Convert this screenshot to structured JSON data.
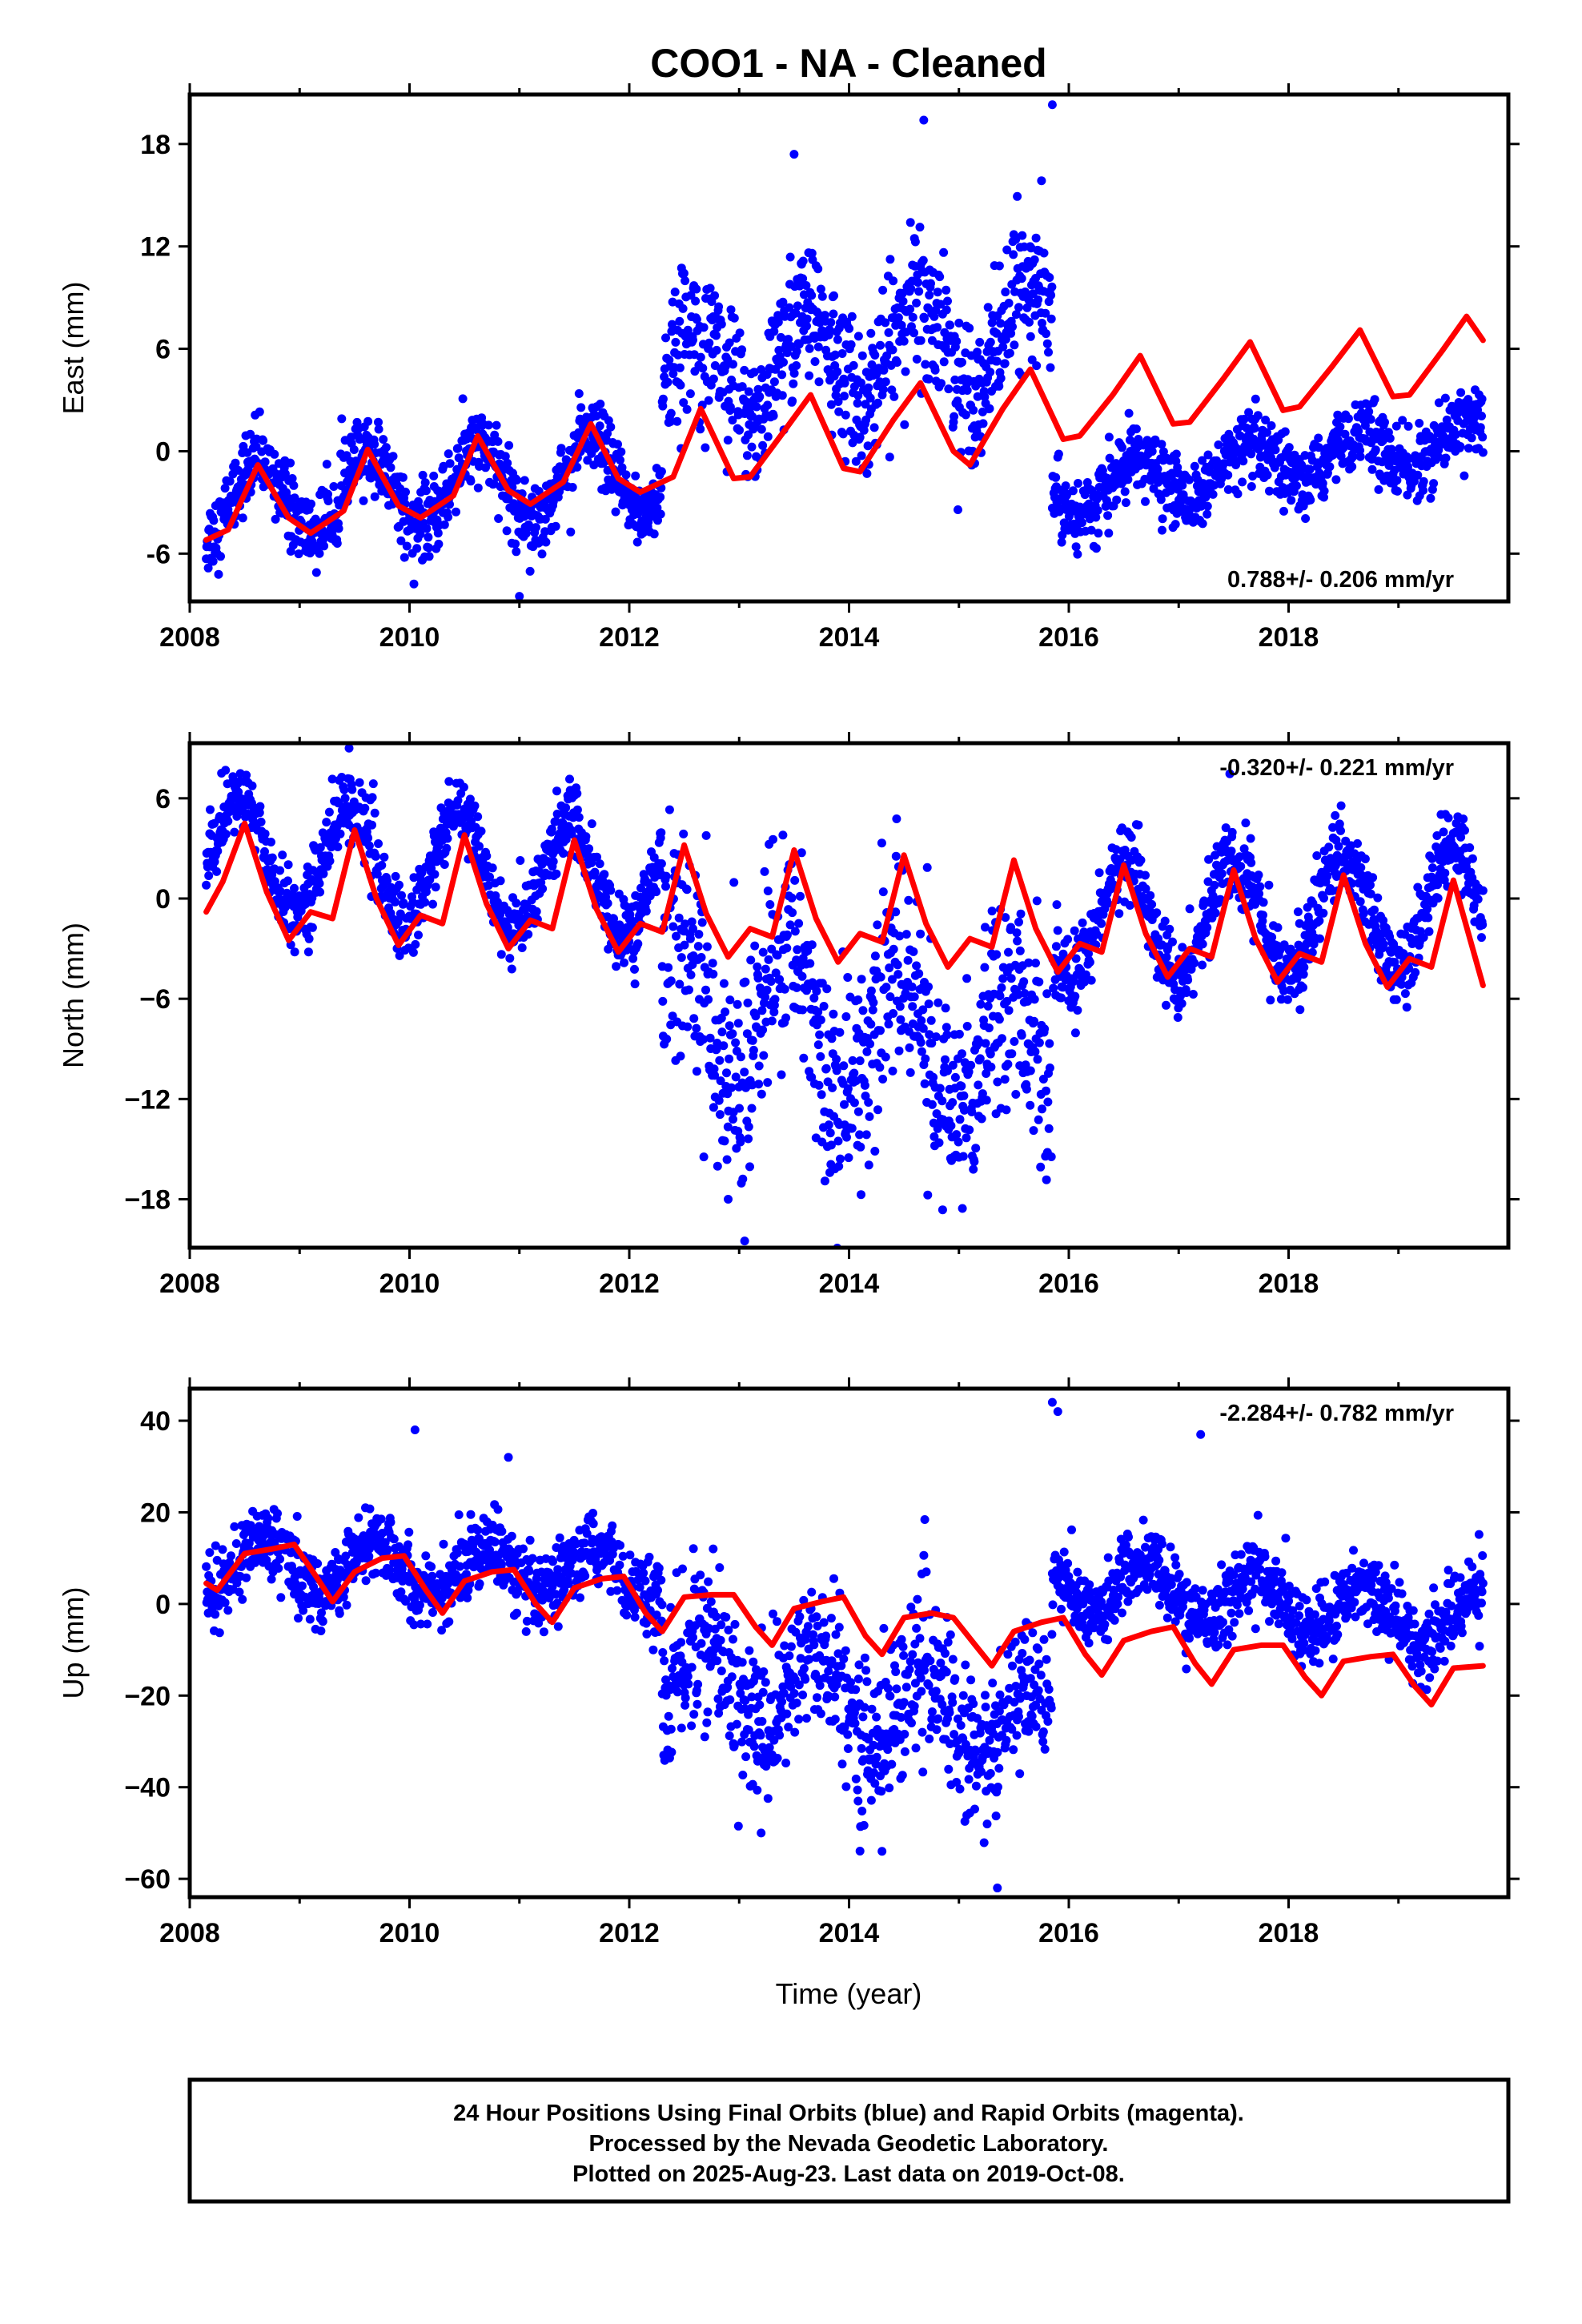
{
  "title": "COO1  - NA - Cleaned",
  "xlabel": "Time (year)",
  "footer": [
    "24 Hour Positions Using Final Orbits (blue) and Rapid Orbits (magenta).",
    "Processed by the Nevada Geodetic Laboratory.",
    "Plotted on 2025-Aug-23. Last data on 2019-Oct-08."
  ],
  "colors": {
    "final_orbits": "#0000ff",
    "model": "#ff0000",
    "frame": "#000000"
  },
  "chart_data": [
    {
      "type": "scatter",
      "component": "east",
      "ylabel": "East (mm)",
      "xlim": [
        2008.0,
        2020.0
      ],
      "ylim": [
        -8.8,
        20.9
      ],
      "x_ticks": [
        2008,
        2010,
        2012,
        2014,
        2016,
        2018
      ],
      "x_tick_labels": [
        "2008",
        "2010",
        "2012",
        "2014",
        "2016",
        "2018"
      ],
      "y_ticks": [
        -6,
        0,
        6,
        12,
        18
      ],
      "y_tick_labels": [
        "-6",
        "0",
        "6",
        "12",
        "18"
      ],
      "rate_label": "0.788+/- 0.206 mm/yr",
      "rate_position": "bottom-right",
      "series": [
        {
          "role": "daily positions (blue)",
          "data_start": 2008.15,
          "data_end": 2019.77,
          "segments": [
            {
              "from": 2008.15,
              "to": 2012.3,
              "trend_start": -3.0,
              "trend_end": -1.2,
              "annual_amplitude": 2.2,
              "annual_peak": 0.62,
              "scatter": 1.1
            },
            {
              "from": 2012.3,
              "to": 2015.85,
              "trend_start": 4.5,
              "trend_end": 7.0,
              "annual_amplitude": 2.8,
              "annual_peak": 0.62,
              "scatter": 2.1
            },
            {
              "from": 2015.85,
              "to": 2019.77,
              "trend_start": -2.5,
              "trend_end": 0.8,
              "annual_amplitude": 1.3,
              "annual_peak": 0.62,
              "scatter": 1.0
            }
          ],
          "outliers": [
            [
              2011.0,
              -8.5
            ],
            [
              2014.68,
              19.4
            ],
            [
              2015.85,
              20.3
            ],
            [
              2013.5,
              17.4
            ]
          ]
        },
        {
          "role": "model fit (red)",
          "points": [
            [
              2008.15,
              -5.2
            ],
            [
              2008.35,
              -4.6
            ],
            [
              2008.62,
              -0.8
            ],
            [
              2008.9,
              -3.9
            ],
            [
              2009.1,
              -4.8
            ],
            [
              2009.4,
              -3.5
            ],
            [
              2009.62,
              0.1
            ],
            [
              2009.9,
              -3.2
            ],
            [
              2010.1,
              -3.9
            ],
            [
              2010.4,
              -2.6
            ],
            [
              2010.62,
              0.9
            ],
            [
              2010.9,
              -2.3
            ],
            [
              2011.1,
              -3.1
            ],
            [
              2011.4,
              -1.8
            ],
            [
              2011.65,
              1.6
            ],
            [
              2011.9,
              -1.6
            ],
            [
              2012.1,
              -2.4
            ],
            [
              2012.4,
              -1.5
            ],
            [
              2012.65,
              2.5
            ],
            [
              2012.95,
              -1.6
            ],
            [
              2013.1,
              -1.5
            ],
            [
              2013.4,
              1.1
            ],
            [
              2013.65,
              3.3
            ],
            [
              2013.95,
              -1.0
            ],
            [
              2014.1,
              -1.2
            ],
            [
              2014.4,
              1.8
            ],
            [
              2014.65,
              4.0
            ],
            [
              2014.95,
              0.0
            ],
            [
              2015.1,
              -0.8
            ],
            [
              2015.4,
              2.5
            ],
            [
              2015.65,
              4.8
            ],
            [
              2015.95,
              0.7
            ],
            [
              2016.1,
              0.9
            ],
            [
              2016.4,
              3.3
            ],
            [
              2016.65,
              5.6
            ],
            [
              2016.95,
              1.6
            ],
            [
              2017.1,
              1.7
            ],
            [
              2017.4,
              4.2
            ],
            [
              2017.65,
              6.4
            ],
            [
              2017.95,
              2.4
            ],
            [
              2018.1,
              2.6
            ],
            [
              2018.4,
              5.0
            ],
            [
              2018.65,
              7.1
            ],
            [
              2018.95,
              3.2
            ],
            [
              2019.1,
              3.3
            ],
            [
              2019.4,
              5.9
            ],
            [
              2019.62,
              7.9
            ],
            [
              2019.77,
              6.5
            ]
          ]
        }
      ]
    },
    {
      "type": "scatter",
      "component": "north",
      "ylabel": "North (mm)",
      "xlim": [
        2008.0,
        2020.0
      ],
      "ylim": [
        -20.9,
        9.3
      ],
      "x_ticks": [
        2008,
        2010,
        2012,
        2014,
        2016,
        2018
      ],
      "x_tick_labels": [
        "2008",
        "2010",
        "2012",
        "2014",
        "2016",
        "2018"
      ],
      "y_ticks": [
        -18,
        -12,
        -6,
        0,
        6
      ],
      "y_tick_labels": [
        "−18",
        "−12",
        "−6",
        "0",
        "6"
      ],
      "rate_label": "-0.320+/- 0.221 mm/yr",
      "rate_position": "top-right",
      "series": [
        {
          "role": "daily positions (blue)",
          "data_start": 2008.15,
          "data_end": 2019.77,
          "segments": [
            {
              "from": 2008.15,
              "to": 2012.3,
              "trend_start": 2.8,
              "trend_end": 0.8,
              "annual_amplitude": 3.3,
              "annual_peak": 0.45,
              "scatter": 1.1
            },
            {
              "from": 2012.3,
              "to": 2015.85,
              "trend_start": -6.0,
              "trend_end": -9.5,
              "annual_amplitude": 4.5,
              "annual_peak": 0.45,
              "scatter": 3.2
            },
            {
              "from": 2015.85,
              "to": 2019.77,
              "trend_start": -1.5,
              "trend_end": -0.5,
              "annual_amplitude": 3.5,
              "annual_peak": 0.5,
              "scatter": 1.2
            }
          ],
          "outliers": [
            [
              2013.05,
              -20.5
            ],
            [
              2012.9,
              -18.0
            ],
            [
              2009.45,
              9.0
            ]
          ]
        },
        {
          "role": "model fit (red)",
          "points": [
            [
              2008.15,
              -0.8
            ],
            [
              2008.3,
              1.0
            ],
            [
              2008.5,
              4.5
            ],
            [
              2008.7,
              0.4
            ],
            [
              2008.9,
              -2.5
            ],
            [
              2009.1,
              -0.8
            ],
            [
              2009.3,
              -1.2
            ],
            [
              2009.5,
              4.1
            ],
            [
              2009.7,
              0.0
            ],
            [
              2009.9,
              -2.8
            ],
            [
              2010.1,
              -1.0
            ],
            [
              2010.3,
              -1.5
            ],
            [
              2010.5,
              3.8
            ],
            [
              2010.7,
              -0.3
            ],
            [
              2010.9,
              -3.0
            ],
            [
              2011.1,
              -1.3
            ],
            [
              2011.3,
              -1.8
            ],
            [
              2011.5,
              3.5
            ],
            [
              2011.7,
              -0.6
            ],
            [
              2011.9,
              -3.2
            ],
            [
              2012.1,
              -1.5
            ],
            [
              2012.3,
              -2.0
            ],
            [
              2012.5,
              3.2
            ],
            [
              2012.7,
              -0.9
            ],
            [
              2012.9,
              -3.5
            ],
            [
              2013.1,
              -1.8
            ],
            [
              2013.3,
              -2.3
            ],
            [
              2013.5,
              2.9
            ],
            [
              2013.7,
              -1.2
            ],
            [
              2013.9,
              -3.8
            ],
            [
              2014.1,
              -2.1
            ],
            [
              2014.3,
              -2.6
            ],
            [
              2014.5,
              2.6
            ],
            [
              2014.7,
              -1.5
            ],
            [
              2014.9,
              -4.1
            ],
            [
              2015.1,
              -2.4
            ],
            [
              2015.3,
              -2.9
            ],
            [
              2015.5,
              2.3
            ],
            [
              2015.7,
              -1.8
            ],
            [
              2015.9,
              -4.4
            ],
            [
              2016.1,
              -2.7
            ],
            [
              2016.3,
              -3.2
            ],
            [
              2016.5,
              2.0
            ],
            [
              2016.7,
              -2.1
            ],
            [
              2016.9,
              -4.7
            ],
            [
              2017.1,
              -3.0
            ],
            [
              2017.3,
              -3.5
            ],
            [
              2017.5,
              1.7
            ],
            [
              2017.7,
              -2.4
            ],
            [
              2017.9,
              -5.0
            ],
            [
              2018.1,
              -3.3
            ],
            [
              2018.3,
              -3.8
            ],
            [
              2018.5,
              1.4
            ],
            [
              2018.7,
              -2.7
            ],
            [
              2018.9,
              -5.3
            ],
            [
              2019.1,
              -3.6
            ],
            [
              2019.3,
              -4.1
            ],
            [
              2019.5,
              1.1
            ],
            [
              2019.77,
              -5.2
            ]
          ]
        }
      ]
    },
    {
      "type": "scatter",
      "component": "up",
      "ylabel": "Up (mm)",
      "xlim": [
        2008.0,
        2020.0
      ],
      "ylim": [
        -64.0,
        47.0
      ],
      "x_ticks": [
        2008,
        2010,
        2012,
        2014,
        2016,
        2018
      ],
      "x_tick_labels": [
        "2008",
        "2010",
        "2012",
        "2014",
        "2016",
        "2018"
      ],
      "y_ticks": [
        -60,
        -40,
        -20,
        0,
        20,
        40
      ],
      "y_tick_labels": [
        "−60",
        "−40",
        "−20",
        "0",
        "20",
        "40"
      ],
      "rate_label": "-2.284+/- 0.782 mm/yr",
      "rate_position": "top-right",
      "series": [
        {
          "role": "daily positions (blue)",
          "data_start": 2008.15,
          "data_end": 2019.77,
          "segments": [
            {
              "from": 2008.15,
              "to": 2012.3,
              "trend_start": 9.0,
              "trend_end": 6.0,
              "annual_amplitude": 5.5,
              "annual_peak": 0.7,
              "scatter": 4.0
            },
            {
              "from": 2012.3,
              "to": 2015.85,
              "trend_start": -15.0,
              "trend_end": -27.0,
              "annual_amplitude": 9.0,
              "annual_peak": 0.7,
              "scatter": 8.5
            },
            {
              "from": 2015.85,
              "to": 2019.77,
              "trend_start": 5.0,
              "trend_end": -4.0,
              "annual_amplitude": 6.0,
              "annual_peak": 0.7,
              "scatter": 4.0
            }
          ],
          "outliers": [
            [
              2010.05,
              38.0
            ],
            [
              2015.85,
              44.0
            ],
            [
              2015.9,
              42.0
            ],
            [
              2017.2,
              37.0
            ],
            [
              2010.9,
              32.0
            ],
            [
              2015.35,
              -62.0
            ],
            [
              2014.3,
              -54.0
            ],
            [
              2013.2,
              -50.0
            ]
          ]
        },
        {
          "role": "model fit (red)",
          "points": [
            [
              2008.15,
              4.5
            ],
            [
              2008.25,
              3.0
            ],
            [
              2008.5,
              11.0
            ],
            [
              2008.75,
              12.0
            ],
            [
              2008.95,
              13.0
            ],
            [
              2009.15,
              6.0
            ],
            [
              2009.3,
              0.5
            ],
            [
              2009.5,
              7.0
            ],
            [
              2009.75,
              10.0
            ],
            [
              2009.95,
              10.5
            ],
            [
              2010.15,
              3.0
            ],
            [
              2010.3,
              -2.0
            ],
            [
              2010.5,
              5.0
            ],
            [
              2010.75,
              7.0
            ],
            [
              2010.95,
              7.5
            ],
            [
              2011.15,
              0.0
            ],
            [
              2011.3,
              -4.0
            ],
            [
              2011.5,
              3.5
            ],
            [
              2011.75,
              5.5
            ],
            [
              2011.95,
              6.0
            ],
            [
              2012.15,
              -2.0
            ],
            [
              2012.3,
              -6.0
            ],
            [
              2012.5,
              1.5
            ],
            [
              2012.75,
              2.0
            ],
            [
              2012.95,
              2.0
            ],
            [
              2013.15,
              -5.0
            ],
            [
              2013.3,
              -9.0
            ],
            [
              2013.5,
              -1.0
            ],
            [
              2013.75,
              0.5
            ],
            [
              2013.95,
              1.5
            ],
            [
              2014.15,
              -7.0
            ],
            [
              2014.3,
              -11.0
            ],
            [
              2014.5,
              -3.0
            ],
            [
              2014.75,
              -2.0
            ],
            [
              2014.95,
              -3.0
            ],
            [
              2015.15,
              -9.0
            ],
            [
              2015.3,
              -13.5
            ],
            [
              2015.5,
              -6.0
            ],
            [
              2015.75,
              -4.0
            ],
            [
              2015.95,
              -3.0
            ],
            [
              2016.15,
              -11.0
            ],
            [
              2016.3,
              -15.5
            ],
            [
              2016.5,
              -8.0
            ],
            [
              2016.75,
              -6.0
            ],
            [
              2016.95,
              -5.0
            ],
            [
              2017.15,
              -13.0
            ],
            [
              2017.3,
              -17.5
            ],
            [
              2017.5,
              -10.0
            ],
            [
              2017.75,
              -9.0
            ],
            [
              2017.95,
              -9.0
            ],
            [
              2018.15,
              -16.0
            ],
            [
              2018.3,
              -20.0
            ],
            [
              2018.5,
              -12.5
            ],
            [
              2018.75,
              -11.5
            ],
            [
              2018.95,
              -11.0
            ],
            [
              2019.15,
              -18.0
            ],
            [
              2019.3,
              -22.0
            ],
            [
              2019.5,
              -14.0
            ],
            [
              2019.77,
              -13.5
            ]
          ]
        }
      ]
    }
  ]
}
